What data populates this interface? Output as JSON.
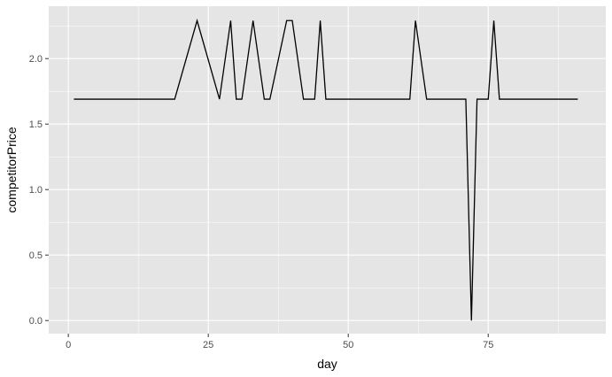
{
  "chart_data": {
    "type": "line",
    "xlabel": "day",
    "ylabel": "competitorPrice",
    "xlim": [
      -3.5,
      96
    ],
    "ylim": [
      -0.1,
      2.4
    ],
    "x_ticks": [
      0,
      25,
      50,
      75
    ],
    "x_tick_labels": [
      "0",
      "25",
      "50",
      "75"
    ],
    "y_ticks": [
      0.0,
      0.5,
      1.0,
      1.5,
      2.0
    ],
    "y_tick_labels": [
      "0.0",
      "0.5",
      "1.0",
      "1.5",
      "2.0"
    ],
    "grid": true,
    "colors": {
      "panel": "#e5e5e5",
      "grid": "#ffffff",
      "line": "#000000",
      "tick": "#333333"
    },
    "series": [
      {
        "x": [
          1,
          19,
          23,
          27,
          29,
          30,
          31,
          33,
          35,
          36,
          37,
          39,
          40,
          42,
          44,
          45,
          46,
          61,
          62,
          63,
          64,
          65,
          71,
          72,
          73,
          74,
          75,
          76,
          77,
          91
        ],
        "y": [
          1.69,
          1.69,
          2.29,
          1.69,
          2.29,
          1.69,
          1.69,
          2.29,
          1.69,
          1.69,
          1.89,
          2.29,
          2.29,
          1.69,
          1.69,
          2.29,
          1.69,
          1.69,
          2.29,
          1.99,
          1.69,
          1.69,
          1.69,
          0.0,
          1.69,
          1.69,
          1.69,
          2.29,
          1.69,
          1.69
        ]
      }
    ]
  }
}
